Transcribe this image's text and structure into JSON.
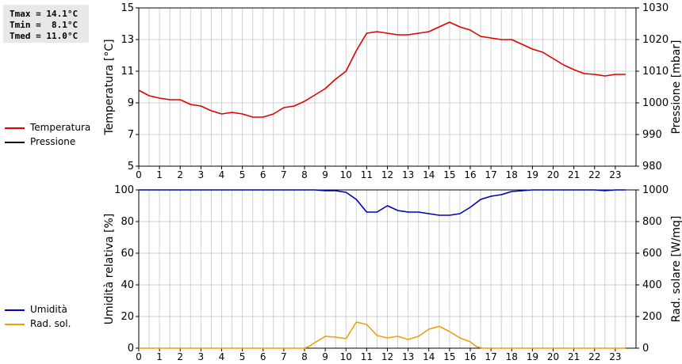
{
  "stats": {
    "tmax": "Tmax = 14.1°C",
    "tmin": "Tmin =  8.1°C",
    "tmed": "Tmed = 11.0°C"
  },
  "legend_top": {
    "temperature": "Temperatura",
    "pressure": "Pressione"
  },
  "legend_bottom": {
    "humidity": "Umidità",
    "radiation": "Rad. sol."
  },
  "colors": {
    "temperature": "#dd0000",
    "pressure": "#000000",
    "humidity": "#0000bb",
    "radiation": "#f0a000",
    "grid": "#d0d0d0"
  },
  "chart_data": [
    {
      "type": "line",
      "x_ticks": [
        "0",
        "1",
        "2",
        "3",
        "4",
        "5",
        "6",
        "7",
        "8",
        "9",
        "10",
        "11",
        "12",
        "13",
        "14",
        "15",
        "16",
        "17",
        "18",
        "19",
        "20",
        "21",
        "22",
        "23"
      ],
      "xlim": [
        0,
        24
      ],
      "ylabel": "Temperatura [°C]",
      "ylim": [
        5,
        15
      ],
      "y_ticks": [
        "5",
        "7",
        "9",
        "11",
        "13",
        "15"
      ],
      "y2label": "Pressione [mbar]",
      "y2lim": [
        980,
        1030
      ],
      "y2_ticks": [
        "980",
        "990",
        "1000",
        "1010",
        "1020",
        "1030"
      ],
      "grid": true,
      "series": [
        {
          "name": "Temperatura",
          "axis": "left",
          "x": [
            0,
            0.5,
            1,
            1.5,
            2,
            2.5,
            3,
            3.5,
            4,
            4.5,
            5,
            5.5,
            6,
            6.5,
            7,
            7.5,
            8,
            8.5,
            9,
            9.5,
            10,
            10.5,
            11,
            11.5,
            12,
            12.5,
            13,
            13.5,
            14,
            14.5,
            15,
            15.5,
            16,
            16.5,
            17,
            17.5,
            18,
            18.5,
            19,
            19.5,
            20,
            20.5,
            21,
            21.5,
            22,
            22.5,
            23,
            23.5
          ],
          "values": [
            9.8,
            9.45,
            9.3,
            9.2,
            9.2,
            8.9,
            8.8,
            8.5,
            8.3,
            8.4,
            8.3,
            8.1,
            8.1,
            8.3,
            8.7,
            8.8,
            9.1,
            9.5,
            9.9,
            10.5,
            11.0,
            12.3,
            13.4,
            13.5,
            13.4,
            13.3,
            13.3,
            13.4,
            13.5,
            13.8,
            14.1,
            13.8,
            13.6,
            13.2,
            13.1,
            13.0,
            13.0,
            12.7,
            12.4,
            12.2,
            11.8,
            11.4,
            11.1,
            10.85,
            10.8,
            10.7,
            10.8,
            10.8
          ]
        },
        {
          "name": "Pressione",
          "axis": "right",
          "x": [],
          "values": []
        }
      ]
    },
    {
      "type": "line",
      "x_ticks": [
        "0",
        "1",
        "2",
        "3",
        "4",
        "5",
        "6",
        "7",
        "8",
        "9",
        "10",
        "11",
        "12",
        "13",
        "14",
        "15",
        "16",
        "17",
        "18",
        "19",
        "20",
        "21",
        "22",
        "23"
      ],
      "xlim": [
        0,
        24
      ],
      "ylabel": "Umidità relativa [%]",
      "ylim": [
        0,
        100
      ],
      "y_ticks": [
        "0",
        "20",
        "40",
        "60",
        "80",
        "100"
      ],
      "y2label": "Rad. solare [W/mq]",
      "y2lim": [
        0,
        1000
      ],
      "y2_ticks": [
        "0",
        "200",
        "400",
        "600",
        "800",
        "1000"
      ],
      "grid": true,
      "series": [
        {
          "name": "Umidità",
          "axis": "left",
          "x": [
            0,
            1,
            2,
            3,
            4,
            5,
            6,
            7,
            8,
            8.5,
            9,
            9.5,
            10,
            10.5,
            11,
            11.5,
            12,
            12.5,
            13,
            13.5,
            14,
            14.5,
            15,
            15.5,
            16,
            16.5,
            17,
            17.5,
            18,
            18.5,
            19,
            20,
            21,
            22,
            22.5,
            23,
            23.5
          ],
          "values": [
            100,
            100,
            100,
            100,
            100,
            100,
            100,
            100,
            100,
            100,
            99.5,
            99.5,
            98.5,
            94,
            86,
            86,
            90,
            87,
            86,
            86,
            85,
            84,
            84,
            85,
            89,
            94,
            96,
            97,
            99,
            99.5,
            100,
            100,
            100,
            100,
            99.5,
            100,
            100
          ]
        },
        {
          "name": "Rad. sol.",
          "axis": "right",
          "x": [
            0,
            1,
            2,
            3,
            4,
            5,
            6,
            7,
            8,
            8.2,
            8.5,
            9,
            9.5,
            10,
            10.5,
            11,
            11.5,
            12,
            12.5,
            13,
            13.5,
            14,
            14.5,
            15,
            15.5,
            16,
            16.3,
            16.6,
            17,
            18,
            19,
            20,
            21,
            22,
            23,
            23.5
          ],
          "values": [
            0,
            0,
            0,
            0,
            0,
            0,
            0,
            0,
            0,
            10,
            35,
            75,
            70,
            60,
            165,
            150,
            80,
            65,
            75,
            55,
            75,
            120,
            138,
            105,
            65,
            40,
            10,
            0,
            0,
            0,
            0,
            0,
            0,
            0,
            0,
            0
          ]
        }
      ]
    }
  ]
}
